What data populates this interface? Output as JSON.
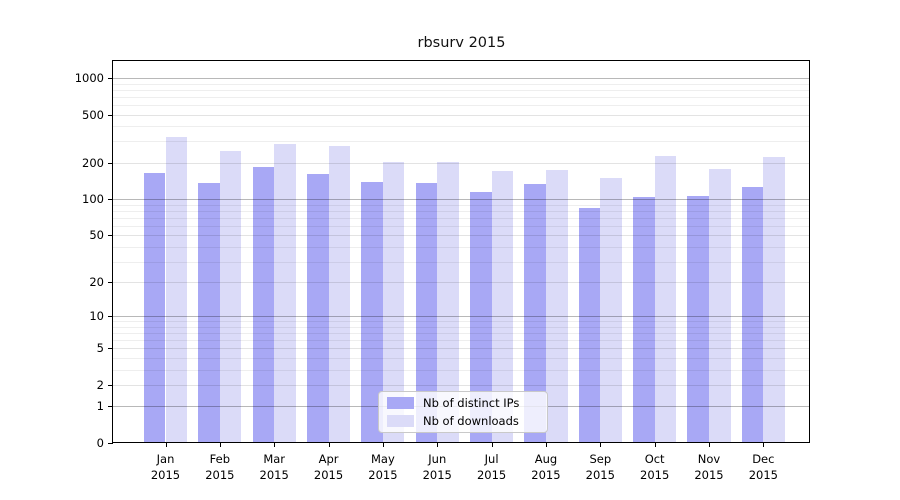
{
  "chart_data": {
    "type": "bar",
    "title": "rbsurv 2015",
    "categories": [
      "Jan",
      "Feb",
      "Mar",
      "Apr",
      "May",
      "Jun",
      "Jul",
      "Aug",
      "Sep",
      "Oct",
      "Nov",
      "Dec"
    ],
    "year_label": "2015",
    "series": [
      {
        "name": "Nb of distinct IPs",
        "color": "#a8a8f5",
        "values": [
          165,
          136,
          185,
          162,
          139,
          136,
          115,
          134,
          85,
          104,
          106,
          126
        ]
      },
      {
        "name": "Nb of downloads",
        "color": "#dbdbf8",
        "values": [
          327,
          250,
          286,
          275,
          205,
          203,
          170,
          174,
          150,
          228,
          178,
          223
        ]
      }
    ],
    "xlabel": "",
    "ylabel": "",
    "y_scale": "log10(1+x)",
    "ylim": [
      0,
      1380
    ],
    "y_ticks": [
      0,
      1,
      2,
      5,
      10,
      20,
      50,
      100,
      200,
      500,
      1000
    ],
    "grid": {
      "major_values": [
        1,
        10,
        100,
        1000
      ],
      "mid_values": [
        2,
        5,
        20,
        50,
        200,
        500
      ],
      "minor_values": [
        3,
        4,
        6,
        7,
        8,
        9,
        30,
        40,
        60,
        70,
        80,
        90,
        300,
        400,
        600,
        700,
        800,
        900
      ]
    },
    "legend_position": "bottom-center"
  }
}
